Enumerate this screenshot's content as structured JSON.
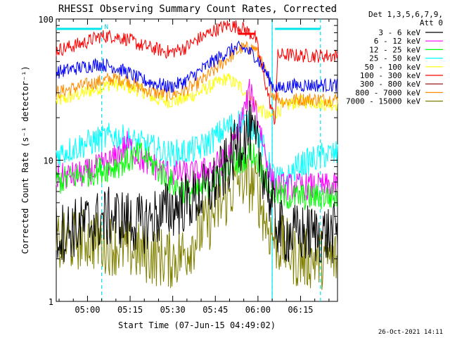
{
  "chart_data": {
    "type": "line",
    "title": "RHESSI Observing Summary Count Rates, Corrected",
    "xlabel": "Start Time (07-Jun-15 04:49:02)",
    "ylabel": "Corrected Count Rate (s⁻¹ detector⁻¹)",
    "y_scale": "log",
    "ylim": [
      1,
      100
    ],
    "xlim_minutes_after_start": [
      0,
      99
    ],
    "x_ticks": [
      "05:00",
      "05:15",
      "05:30",
      "05:45",
      "06:00",
      "06:15"
    ],
    "x_tick_minutes": [
      11,
      26,
      41,
      56,
      71,
      86
    ],
    "y_ticks": [
      "1",
      "10",
      "100"
    ],
    "y_tick_values": [
      1,
      10,
      100
    ],
    "grid": false,
    "legend_position": "right",
    "legend_header": [
      "Det 1,3,5,6,7,9,",
      "Att 0"
    ],
    "footer": "26-Oct-2021 14:11",
    "markers": {
      "cyan_dashed_lines_minutes": [
        16,
        76,
        93
      ],
      "cyan_solid_lines_minutes": [
        76
      ],
      "cyan_top_bars": [
        [
          0,
          16
        ],
        [
          77,
          93
        ]
      ],
      "red_top_bar": [
        64,
        70
      ],
      "n_label": "N",
      "n_label_minute": 17
    },
    "series": [
      {
        "name": "3 - 6 keV",
        "color": "#000000",
        "x": [
          0,
          10,
          20,
          30,
          40,
          50,
          55,
          60,
          63,
          66,
          68,
          70,
          72,
          74,
          76,
          78,
          80,
          85,
          90,
          95,
          99
        ],
        "y": [
          3.0,
          3.5,
          4.0,
          3.5,
          4.5,
          5.5,
          6.5,
          9,
          12,
          15,
          16,
          13,
          10,
          7,
          4.5,
          3.5,
          3.0,
          3.0,
          3.0,
          3.0,
          3.0
        ]
      },
      {
        "name": "6 - 12 keV",
        "color": "#ff00ff",
        "x": [
          0,
          10,
          20,
          25,
          30,
          40,
          50,
          55,
          60,
          63,
          66,
          68,
          70,
          72,
          74,
          76,
          78,
          85,
          90,
          95,
          99
        ],
        "y": [
          7.5,
          8,
          10,
          13,
          10,
          8,
          8,
          9,
          10,
          14,
          22,
          30,
          25,
          16,
          10,
          7,
          6.5,
          6.5,
          6.5,
          6.5,
          6.5
        ]
      },
      {
        "name": "12 - 25 keV",
        "color": "#00ff00",
        "x": [
          0,
          10,
          20,
          30,
          35,
          40,
          45,
          50,
          55,
          60,
          65,
          68,
          70,
          72,
          74,
          76,
          80,
          85,
          90,
          95,
          99
        ],
        "y": [
          7,
          8,
          9,
          11,
          9,
          7,
          6,
          6,
          7,
          9,
          10,
          11,
          11,
          9,
          7,
          6,
          5.5,
          5.5,
          5.5,
          5.5,
          5.5
        ]
      },
      {
        "name": "25 - 50 keV",
        "color": "#00ffff",
        "x": [
          0,
          10,
          20,
          30,
          40,
          50,
          55,
          60,
          65,
          70,
          73,
          76,
          80,
          85,
          90,
          95,
          99
        ],
        "y": [
          11,
          13,
          15,
          13,
          11,
          12,
          14,
          17,
          19,
          17,
          12,
          8,
          7,
          9,
          10,
          11,
          11
        ]
      },
      {
        "name": "50 - 100 keV",
        "color": "#ffff00",
        "x": [
          0,
          10,
          20,
          30,
          35,
          40,
          45,
          50,
          55,
          60,
          65,
          70,
          75,
          80,
          85,
          90,
          95,
          99
        ],
        "y": [
          26,
          30,
          35,
          31,
          27,
          26,
          27,
          30,
          34,
          38,
          33,
          25,
          20,
          24,
          26,
          26,
          25,
          25
        ]
      },
      {
        "name": "100 - 300 keV",
        "color": "#ff0000",
        "x": [
          0,
          10,
          15,
          20,
          25,
          30,
          40,
          45,
          50,
          55,
          60,
          65,
          70,
          73,
          76,
          77,
          78,
          80,
          85,
          90,
          95,
          99
        ],
        "y": [
          60,
          68,
          75,
          76,
          72,
          65,
          58,
          62,
          72,
          82,
          90,
          88,
          75,
          40,
          22,
          19,
          55,
          56,
          55,
          55,
          55,
          55
        ]
      },
      {
        "name": "300 - 800 keV",
        "color": "#8b0000",
        "x": [
          0,
          99
        ],
        "y": [
          null,
          null
        ]
      },
      {
        "name": "800 - 7000 keV",
        "color": "#ff8c00",
        "x": [
          0,
          10,
          20,
          25,
          30,
          35,
          40,
          45,
          50,
          55,
          60,
          65,
          70,
          73,
          76,
          80,
          85,
          90,
          95,
          99
        ],
        "y": [
          30,
          34,
          38,
          37,
          32,
          30,
          29,
          31,
          35,
          42,
          52,
          62,
          62,
          45,
          30,
          26,
          27,
          27,
          27,
          27
        ]
      },
      {
        "name": "7000 - 15000 keV",
        "color": "#808000",
        "x": [
          0,
          10,
          20,
          30,
          40,
          45,
          50,
          55,
          60,
          65,
          70,
          72,
          74,
          76,
          78,
          80,
          85,
          90,
          95,
          99
        ],
        "y": [
          2.5,
          2.8,
          2.5,
          2.2,
          2.0,
          2.2,
          3.0,
          4.0,
          5.5,
          7.5,
          6.5,
          5.0,
          3.5,
          3.0,
          2.5,
          2.5,
          2.0,
          2.0,
          2.0,
          2.0
        ]
      },
      {
        "name": "3 - 6 keV",
        "color": "#0000ff",
        "x": [
          0,
          10,
          15,
          20,
          25,
          30,
          40,
          45,
          50,
          55,
          60,
          63,
          66,
          70,
          73,
          76,
          78,
          80,
          85,
          90,
          95,
          99
        ],
        "y": [
          42,
          46,
          48,
          46,
          42,
          37,
          33,
          36,
          42,
          50,
          58,
          62,
          62,
          55,
          45,
          34,
          32,
          33,
          34,
          34,
          34,
          34
        ],
        "legend_hidden": true
      }
    ]
  },
  "legend_colors": [
    "#000000",
    "#ff00ff",
    "#00ff00",
    "#00ffff",
    "#ffff00",
    "#ff0000",
    "#8b0000",
    "#ff8c00",
    "#808000"
  ]
}
